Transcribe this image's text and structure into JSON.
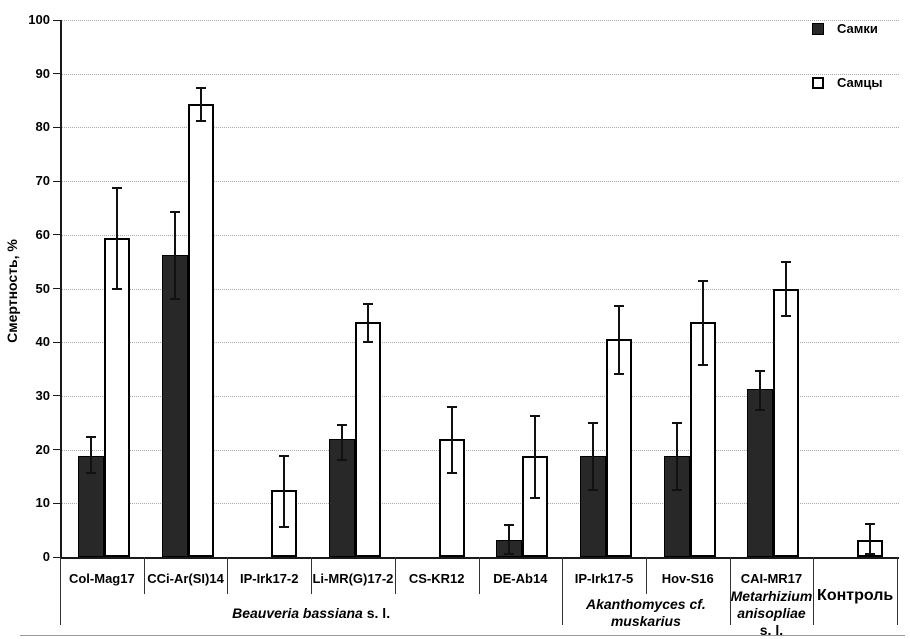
{
  "chart_data": {
    "type": "bar",
    "title": "",
    "ylabel": "Смертность, %",
    "ylim": [
      0,
      100
    ],
    "yticks": [
      0,
      10,
      20,
      30,
      40,
      50,
      60,
      70,
      80,
      90,
      100
    ],
    "grid": "horizontal-dotted",
    "legend_position": "top-right",
    "categories": [
      "Col-Mag17",
      "CCi-Ar(SI)14",
      "IP-Irk17-2",
      "Li-MR(G)17-2",
      "CS-KR12",
      "DE-Ab14",
      "IP-Irk17-5",
      "Hov-S16",
      "CAI-MR17",
      "Контроль"
    ],
    "series": [
      {
        "name": "Самки",
        "color": "#282828",
        "values": [
          18.8,
          56.3,
          null,
          21.9,
          null,
          3.1,
          18.8,
          18.8,
          31.3,
          null
        ],
        "err_low": [
          15.6,
          48.0,
          null,
          18.1,
          null,
          0.5,
          12.5,
          12.5,
          27.4,
          null
        ],
        "err_high": [
          22.4,
          64.2,
          null,
          24.6,
          null,
          6.0,
          25.0,
          25.0,
          34.6,
          null
        ]
      },
      {
        "name": "Самцы",
        "color": "#ffffff",
        "values": [
          59.4,
          84.4,
          12.5,
          43.8,
          21.9,
          18.8,
          40.6,
          43.8,
          50.0,
          3.1
        ],
        "err_low": [
          50.0,
          81.2,
          5.6,
          40.0,
          15.6,
          10.9,
          34.0,
          35.7,
          44.9,
          0.5
        ],
        "err_high": [
          68.8,
          87.4,
          18.8,
          47.2,
          27.9,
          26.3,
          46.8,
          51.4,
          55.0,
          6.2
        ]
      }
    ],
    "groups": [
      {
        "from": 0,
        "to": 5,
        "big": false,
        "hide_cat_label": false,
        "label_lines": [
          [
            {
              "t": "Beauveria bassiana",
              "i": true
            },
            {
              "t": " s. l.",
              "i": false
            }
          ]
        ]
      },
      {
        "from": 6,
        "to": 7,
        "big": false,
        "hide_cat_label": false,
        "label_lines": [
          [
            {
              "t": "Akanthomyces cf.",
              "i": true
            }
          ],
          [
            {
              "t": "muskarius",
              "i": true
            }
          ]
        ]
      },
      {
        "from": 8,
        "to": 8,
        "big": false,
        "hide_cat_label": false,
        "label_lines": [
          [
            {
              "t": "Metarhizium",
              "i": true
            }
          ],
          [
            {
              "t": "anisopliae",
              "i": true
            },
            {
              "t": " s. l.",
              "i": false
            }
          ]
        ]
      },
      {
        "from": 9,
        "to": 9,
        "big": true,
        "hide_cat_label": true,
        "label_lines": [
          [
            {
              "t": "Контроль",
              "i": false
            }
          ]
        ]
      }
    ]
  }
}
